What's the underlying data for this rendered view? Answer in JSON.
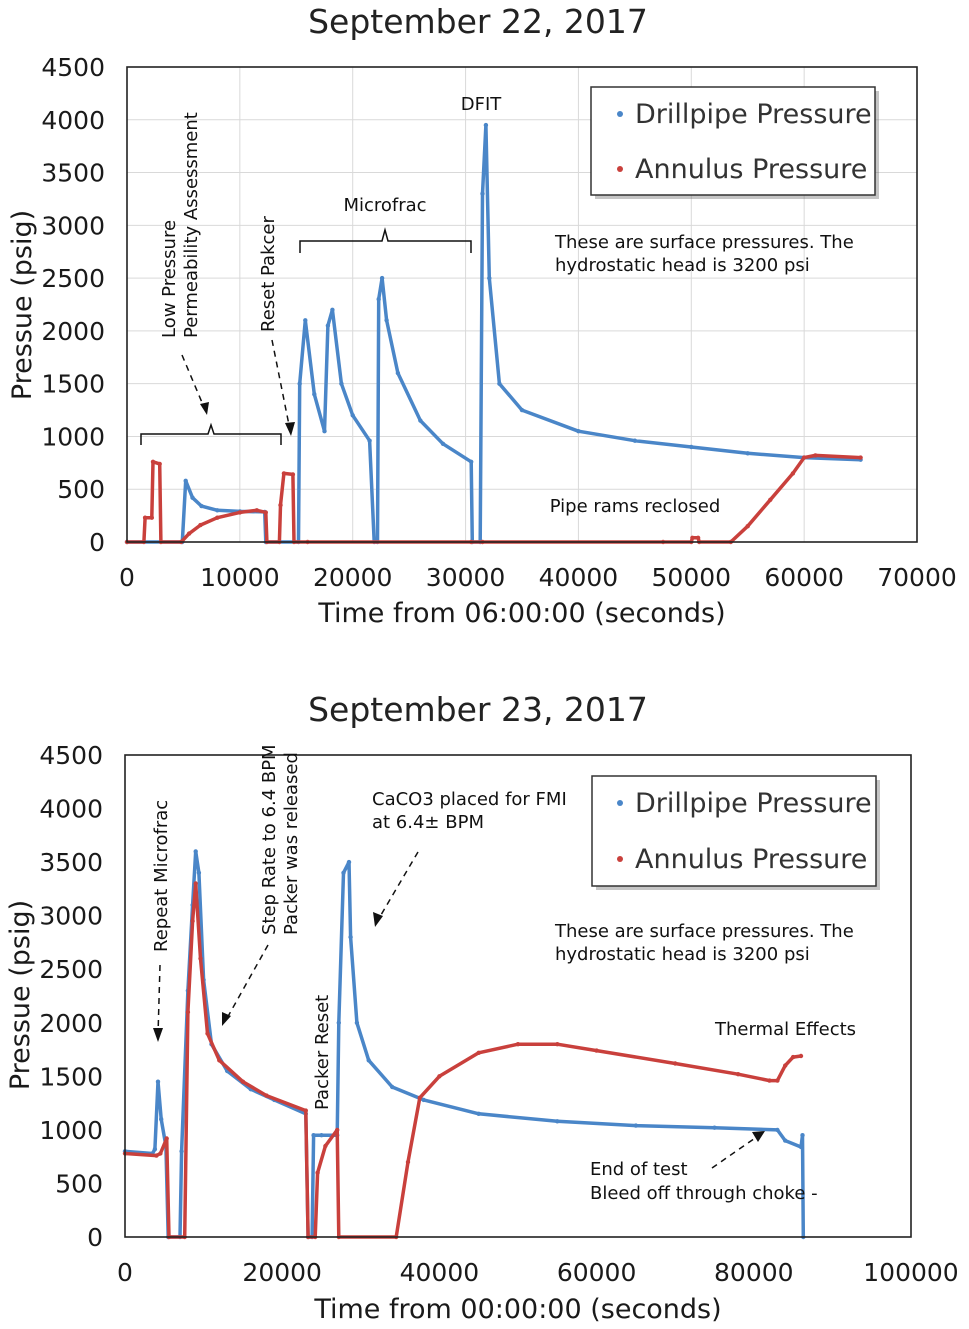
{
  "chart_data": [
    {
      "type": "scatter",
      "title": "September 22, 2017",
      "xlabel": "Time from 06:00:00 (seconds)",
      "ylabel": "Pressue (psig)",
      "xlim": [
        0,
        70000
      ],
      "ylim": [
        0,
        4500
      ],
      "xticks": [
        0,
        10000,
        20000,
        30000,
        40000,
        50000,
        60000,
        70000
      ],
      "yticks": [
        0,
        500,
        1000,
        1500,
        2000,
        2500,
        3000,
        3500,
        4000,
        4500
      ],
      "grid": true,
      "legend_position": "top-right",
      "series": [
        {
          "name": "Drillpipe Pressure",
          "color": "#4a86c8",
          "points": [
            [
              0,
              0
            ],
            [
              4900,
              0
            ],
            [
              5200,
              580
            ],
            [
              5800,
              420
            ],
            [
              6600,
              340
            ],
            [
              8000,
              300
            ],
            [
              10000,
              290
            ],
            [
              12200,
              285
            ],
            [
              12300,
              0
            ],
            [
              15200,
              0
            ],
            [
              15300,
              1500
            ],
            [
              15800,
              2100
            ],
            [
              16600,
              1400
            ],
            [
              17500,
              1050
            ],
            [
              17800,
              2050
            ],
            [
              18200,
              2200
            ],
            [
              19000,
              1500
            ],
            [
              20000,
              1200
            ],
            [
              21500,
              960
            ],
            [
              21900,
              0
            ],
            [
              22200,
              0
            ],
            [
              22300,
              2300
            ],
            [
              22600,
              2500
            ],
            [
              23000,
              2100
            ],
            [
              24000,
              1600
            ],
            [
              26000,
              1150
            ],
            [
              28000,
              930
            ],
            [
              30500,
              760
            ],
            [
              30600,
              0
            ],
            [
              31300,
              0
            ],
            [
              31500,
              3300
            ],
            [
              31800,
              3950
            ],
            [
              32100,
              2500
            ],
            [
              33000,
              1500
            ],
            [
              35000,
              1250
            ],
            [
              40000,
              1050
            ],
            [
              45000,
              960
            ],
            [
              50000,
              900
            ],
            [
              55000,
              840
            ],
            [
              60000,
              800
            ],
            [
              65000,
              780
            ]
          ]
        },
        {
          "name": "Annulus Pressure",
          "color": "#c9403c",
          "points": [
            [
              0,
              0
            ],
            [
              1500,
              0
            ],
            [
              1600,
              230
            ],
            [
              2200,
              230
            ],
            [
              2300,
              760
            ],
            [
              2900,
              740
            ],
            [
              3000,
              0
            ],
            [
              4800,
              0
            ],
            [
              5500,
              80
            ],
            [
              6500,
              160
            ],
            [
              8000,
              230
            ],
            [
              10000,
              280
            ],
            [
              11500,
              300
            ],
            [
              12300,
              280
            ],
            [
              12400,
              0
            ],
            [
              13500,
              0
            ],
            [
              13600,
              350
            ],
            [
              13900,
              650
            ],
            [
              14700,
              640
            ],
            [
              14800,
              0
            ],
            [
              16000,
              0
            ],
            [
              30500,
              0
            ],
            [
              31500,
              0
            ],
            [
              47500,
              0
            ],
            [
              50000,
              0
            ],
            [
              50100,
              40
            ],
            [
              50600,
              40
            ],
            [
              50700,
              0
            ],
            [
              53500,
              0
            ],
            [
              55000,
              150
            ],
            [
              57000,
              400
            ],
            [
              59000,
              650
            ],
            [
              60000,
              800
            ],
            [
              61000,
              820
            ],
            [
              65000,
              800
            ]
          ]
        }
      ],
      "annotations": [
        "Low Pressure",
        "Permeability Assessment",
        "Reset Pakcer",
        "Microfrac",
        "DFIT",
        "These are surface pressures. The",
        "hydrostatic head is 3200 psi",
        "Pipe rams reclosed"
      ]
    },
    {
      "type": "scatter",
      "title": "September 23, 2017",
      "xlabel": "Time from 00:00:00 (seconds)",
      "ylabel": "Pressue (psig)",
      "xlim": [
        0,
        100000
      ],
      "ylim": [
        0,
        4500
      ],
      "xticks": [
        0,
        20000,
        40000,
        60000,
        80000,
        100000
      ],
      "yticks": [
        0,
        500,
        1000,
        1500,
        2000,
        2500,
        3000,
        3500,
        4000,
        4500
      ],
      "grid": false,
      "legend_position": "top-right",
      "series": [
        {
          "name": "Drillpipe Pressure",
          "color": "#4a86c8",
          "points": [
            [
              0,
              800
            ],
            [
              3500,
              780
            ],
            [
              3800,
              820
            ],
            [
              4200,
              1450
            ],
            [
              4600,
              1100
            ],
            [
              5200,
              850
            ],
            [
              5500,
              0
            ],
            [
              7000,
              0
            ],
            [
              7200,
              800
            ],
            [
              8000,
              2300
            ],
            [
              8600,
              3100
            ],
            [
              9000,
              3600
            ],
            [
              9400,
              3400
            ],
            [
              10000,
              2400
            ],
            [
              11000,
              1800
            ],
            [
              13000,
              1550
            ],
            [
              16000,
              1380
            ],
            [
              19000,
              1280
            ],
            [
              23000,
              1150
            ],
            [
              23300,
              0
            ],
            [
              23800,
              0
            ],
            [
              24000,
              950
            ],
            [
              25000,
              950
            ],
            [
              27000,
              950
            ],
            [
              27200,
              2000
            ],
            [
              27800,
              3400
            ],
            [
              28500,
              3500
            ],
            [
              28700,
              2800
            ],
            [
              29500,
              2000
            ],
            [
              31000,
              1650
            ],
            [
              34000,
              1400
            ],
            [
              38000,
              1280
            ],
            [
              45000,
              1150
            ],
            [
              55000,
              1080
            ],
            [
              65000,
              1040
            ],
            [
              75000,
              1020
            ],
            [
              83000,
              1000
            ],
            [
              84000,
              900
            ],
            [
              86000,
              840
            ],
            [
              86200,
              950
            ],
            [
              86300,
              0
            ]
          ]
        },
        {
          "name": "Annulus Pressure",
          "color": "#c9403c",
          "points": [
            [
              0,
              780
            ],
            [
              4000,
              760
            ],
            [
              4500,
              780
            ],
            [
              5300,
              920
            ],
            [
              5600,
              0
            ],
            [
              7600,
              0
            ],
            [
              8000,
              2100
            ],
            [
              8600,
              2950
            ],
            [
              9000,
              3300
            ],
            [
              9600,
              2600
            ],
            [
              10500,
              1900
            ],
            [
              12000,
              1650
            ],
            [
              15000,
              1450
            ],
            [
              18000,
              1320
            ],
            [
              23000,
              1180
            ],
            [
              23300,
              0
            ],
            [
              24200,
              0
            ],
            [
              24500,
              600
            ],
            [
              25500,
              850
            ],
            [
              27000,
              1000
            ],
            [
              27200,
              0
            ],
            [
              34500,
              0
            ],
            [
              36000,
              700
            ],
            [
              37500,
              1300
            ],
            [
              40000,
              1500
            ],
            [
              45000,
              1720
            ],
            [
              50000,
              1800
            ],
            [
              55000,
              1800
            ],
            [
              60000,
              1740
            ],
            [
              70000,
              1620
            ],
            [
              78000,
              1520
            ],
            [
              82000,
              1460
            ],
            [
              83000,
              1460
            ],
            [
              84000,
              1600
            ],
            [
              85000,
              1680
            ],
            [
              86000,
              1690
            ]
          ]
        }
      ],
      "annotations": [
        "Repeat Microfrac",
        "Step Rate to 6.4 BPM",
        "Packer was released",
        "Packer Reset",
        "CaCO3 placed for FMI",
        "at 6.4± BPM",
        "These are surface pressures. The",
        "hydrostatic head is 3200 psi",
        "Thermal Effects",
        "End of test",
        "Bleed off through choke -"
      ]
    }
  ]
}
